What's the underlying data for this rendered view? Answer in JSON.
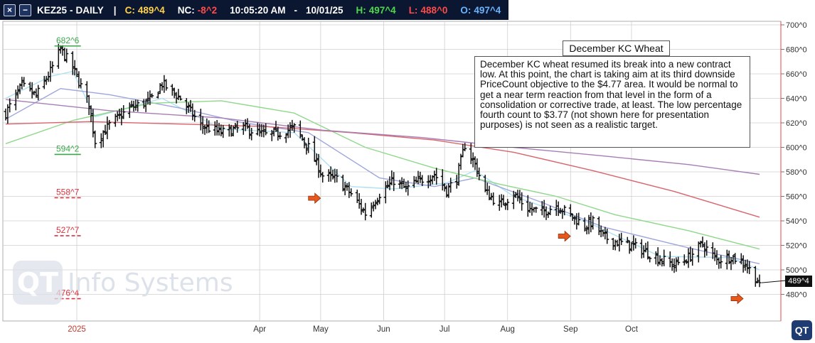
{
  "header": {
    "symbol": "KEZ25",
    "separator_dash": "-",
    "period": "DAILY",
    "separator_bar": "|",
    "close_label": "C:",
    "close_value": "489^4",
    "net_change_label": "NC:",
    "net_change_value": "-8^2",
    "time": "10:05:20 AM",
    "time_date_separator": "-",
    "date": "10/01/25",
    "high_label": "H:",
    "high_value": "497^4",
    "low_label": "L:",
    "low_value": "488^0",
    "open_label": "O:",
    "open_value": "497^4",
    "icons": [
      "close-window-icon",
      "minimize-window-icon"
    ]
  },
  "annotation": {
    "title": "December KC Wheat",
    "body": "December KC wheat resumed its break into a new contract low.  At this point, the chart is taking aim at its third downside PriceCount objective to the $4.77 area.  It would be normal to get a near term reaction from that level in the form of a consolidation or corrective trade, at least.  The low percentage fourth count to $3.77 (not shown here for presentation purposes) is not seen as a realistic target."
  },
  "watermark": {
    "logo_text": "QT",
    "text": "Info Systems"
  },
  "corner_logo": "QT",
  "last_price_tag": "489^4",
  "colors": {
    "header_bg": "#0b1730",
    "ma_fast": "#aee0f2",
    "ma_mid": "#9da6dd",
    "ma_green": "#8fd889",
    "ma_red": "#d9646c",
    "ma_purple": "#a77db4",
    "count_green": "#3aa84a",
    "count_red": "#d9333f",
    "arrow": "#e8581c"
  },
  "chart_data": {
    "type": "ohlc",
    "y_axis": {
      "min": 460,
      "max": 705,
      "position": "right",
      "ticks": [
        480,
        500,
        520,
        540,
        560,
        580,
        600,
        620,
        640,
        660,
        680,
        700
      ],
      "tick_labels": [
        "480^0",
        "500^0",
        "520^0",
        "540^0",
        "560^0",
        "580^0",
        "600^0",
        "620^0",
        "640^0",
        "660^0",
        "680^0",
        "700^0"
      ]
    },
    "x_axis": {
      "labels": [
        {
          "date": "2025-01-01",
          "label": "2025"
        },
        {
          "date": "2025-04-01",
          "label": "Apr"
        },
        {
          "date": "2025-05-01",
          "label": "May"
        },
        {
          "date": "2025-06-01",
          "label": "Jun"
        },
        {
          "date": "2025-07-01",
          "label": "Jul"
        },
        {
          "date": "2025-08-01",
          "label": "Aug"
        },
        {
          "date": "2025-09-01",
          "label": "Sep"
        },
        {
          "date": "2025-10-01",
          "label": "Oct"
        }
      ]
    },
    "grid": true,
    "last_price": 489.5,
    "keypoints": [
      {
        "date": "2024-11-27",
        "price": 628
      },
      {
        "date": "2024-12-05",
        "price": 650
      },
      {
        "date": "2024-12-12",
        "price": 642
      },
      {
        "date": "2024-12-19",
        "price": 662
      },
      {
        "date": "2024-12-24",
        "price": 680
      },
      {
        "date": "2024-12-30",
        "price": 665
      },
      {
        "date": "2025-01-07",
        "price": 635
      },
      {
        "date": "2025-01-10",
        "price": 605
      },
      {
        "date": "2025-01-17",
        "price": 618
      },
      {
        "date": "2025-01-27",
        "price": 632
      },
      {
        "date": "2025-02-06",
        "price": 638
      },
      {
        "date": "2025-02-12",
        "price": 652
      },
      {
        "date": "2025-02-21",
        "price": 640
      },
      {
        "date": "2025-03-03",
        "price": 618
      },
      {
        "date": "2025-03-13",
        "price": 612
      },
      {
        "date": "2025-03-24",
        "price": 616
      },
      {
        "date": "2025-04-04",
        "price": 610
      },
      {
        "date": "2025-04-11",
        "price": 612
      },
      {
        "date": "2025-04-18",
        "price": 616
      },
      {
        "date": "2025-04-25",
        "price": 600
      },
      {
        "date": "2025-05-02",
        "price": 577
      },
      {
        "date": "2025-05-09",
        "price": 574
      },
      {
        "date": "2025-05-16",
        "price": 562
      },
      {
        "date": "2025-05-23",
        "price": 546
      },
      {
        "date": "2025-05-30",
        "price": 562
      },
      {
        "date": "2025-06-06",
        "price": 573
      },
      {
        "date": "2025-06-12",
        "price": 566
      },
      {
        "date": "2025-06-20",
        "price": 574
      },
      {
        "date": "2025-06-26",
        "price": 578
      },
      {
        "date": "2025-07-02",
        "price": 565
      },
      {
        "date": "2025-07-07",
        "price": 575
      },
      {
        "date": "2025-07-11",
        "price": 602
      },
      {
        "date": "2025-07-16",
        "price": 586
      },
      {
        "date": "2025-07-21",
        "price": 564
      },
      {
        "date": "2025-07-28",
        "price": 553
      },
      {
        "date": "2025-08-04",
        "price": 562
      },
      {
        "date": "2025-08-11",
        "price": 550
      },
      {
        "date": "2025-08-18",
        "price": 547
      },
      {
        "date": "2025-08-25",
        "price": 553
      },
      {
        "date": "2025-09-02",
        "price": 543
      },
      {
        "date": "2025-09-08",
        "price": 536
      },
      {
        "date": "2025-09-12",
        "price": 539
      },
      {
        "date": "2025-09-17",
        "price": 527
      },
      {
        "date": "2025-09-23",
        "price": 523
      },
      {
        "date": "2025-10-01",
        "price": 520
      },
      {
        "date": "2025-10-08",
        "price": 515
      },
      {
        "date": "2025-10-15",
        "price": 509
      },
      {
        "date": "2025-10-22",
        "price": 504
      },
      {
        "date": "2025-10-29",
        "price": 510
      },
      {
        "date": "2025-11-05",
        "price": 521
      },
      {
        "date": "2025-11-12",
        "price": 508
      },
      {
        "date": "2025-11-19",
        "price": 511
      },
      {
        "date": "2025-11-26",
        "price": 505
      },
      {
        "date": "2025-12-03",
        "price": 489
      }
    ],
    "moving_averages": [
      {
        "color_key": "ma_fast",
        "points": [
          {
            "date": "2024-11-27",
            "price": 640
          },
          {
            "date": "2024-12-19",
            "price": 658
          },
          {
            "date": "2024-12-30",
            "price": 662
          },
          {
            "date": "2025-01-10",
            "price": 625
          },
          {
            "date": "2025-02-12",
            "price": 640
          },
          {
            "date": "2025-03-13",
            "price": 615
          },
          {
            "date": "2025-04-18",
            "price": 612
          },
          {
            "date": "2025-05-16",
            "price": 568
          },
          {
            "date": "2025-06-06",
            "price": 566
          },
          {
            "date": "2025-07-02",
            "price": 571
          },
          {
            "date": "2025-07-16",
            "price": 581
          },
          {
            "date": "2025-08-04",
            "price": 560
          },
          {
            "date": "2025-09-08",
            "price": 540
          },
          {
            "date": "2025-10-15",
            "price": 511
          },
          {
            "date": "2025-11-19",
            "price": 510
          },
          {
            "date": "2025-12-03",
            "price": 500
          }
        ]
      },
      {
        "color_key": "ma_mid",
        "points": [
          {
            "date": "2024-11-27",
            "price": 623
          },
          {
            "date": "2024-12-24",
            "price": 648
          },
          {
            "date": "2025-01-17",
            "price": 643
          },
          {
            "date": "2025-02-21",
            "price": 632
          },
          {
            "date": "2025-03-24",
            "price": 620
          },
          {
            "date": "2025-04-25",
            "price": 612
          },
          {
            "date": "2025-05-30",
            "price": 575
          },
          {
            "date": "2025-06-26",
            "price": 568
          },
          {
            "date": "2025-07-16",
            "price": 575
          },
          {
            "date": "2025-08-18",
            "price": 555
          },
          {
            "date": "2025-09-17",
            "price": 535
          },
          {
            "date": "2025-10-29",
            "price": 518
          },
          {
            "date": "2025-12-03",
            "price": 505
          }
        ]
      },
      {
        "color_key": "ma_green",
        "points": [
          {
            "date": "2024-11-27",
            "price": 603
          },
          {
            "date": "2024-12-30",
            "price": 622
          },
          {
            "date": "2025-02-06",
            "price": 636
          },
          {
            "date": "2025-03-13",
            "price": 638
          },
          {
            "date": "2025-04-18",
            "price": 628
          },
          {
            "date": "2025-05-23",
            "price": 600
          },
          {
            "date": "2025-06-26",
            "price": 583
          },
          {
            "date": "2025-07-28",
            "price": 570
          },
          {
            "date": "2025-08-25",
            "price": 560
          },
          {
            "date": "2025-09-23",
            "price": 545
          },
          {
            "date": "2025-10-29",
            "price": 532
          },
          {
            "date": "2025-12-03",
            "price": 517
          }
        ]
      },
      {
        "color_key": "ma_red",
        "points": [
          {
            "date": "2024-11-27",
            "price": 619
          },
          {
            "date": "2025-01-07",
            "price": 621
          },
          {
            "date": "2025-02-21",
            "price": 619
          },
          {
            "date": "2025-04-04",
            "price": 617
          },
          {
            "date": "2025-05-16",
            "price": 612
          },
          {
            "date": "2025-06-26",
            "price": 606
          },
          {
            "date": "2025-08-04",
            "price": 596
          },
          {
            "date": "2025-09-12",
            "price": 581
          },
          {
            "date": "2025-10-22",
            "price": 564
          },
          {
            "date": "2025-12-03",
            "price": 543
          }
        ]
      },
      {
        "color_key": "ma_purple",
        "points": [
          {
            "date": "2024-11-27",
            "price": 639
          },
          {
            "date": "2025-01-17",
            "price": 630
          },
          {
            "date": "2025-03-13",
            "price": 624
          },
          {
            "date": "2025-05-02",
            "price": 614
          },
          {
            "date": "2025-06-20",
            "price": 608
          },
          {
            "date": "2025-08-04",
            "price": 600
          },
          {
            "date": "2025-09-17",
            "price": 593
          },
          {
            "date": "2025-10-29",
            "price": 586
          },
          {
            "date": "2025-12-03",
            "price": 578
          }
        ]
      }
    ],
    "price_counts": [
      {
        "label": "682^6",
        "price": 682.75,
        "color_key": "count_green",
        "style": "solid",
        "date_from": "2024-12-21",
        "date_to": "2025-01-03"
      },
      {
        "label": "594^2",
        "price": 594.25,
        "color_key": "count_green",
        "style": "solid",
        "date_from": "2024-12-21",
        "date_to": "2025-01-03"
      },
      {
        "label": "558^7",
        "price": 558.875,
        "color_key": "count_red",
        "style": "dashed",
        "date_from": "2024-12-21",
        "date_to": "2025-01-03"
      },
      {
        "label": "527^7",
        "price": 527.875,
        "color_key": "count_red",
        "style": "dashed",
        "date_from": "2024-12-21",
        "date_to": "2025-01-03"
      },
      {
        "label": "476^4",
        "price": 476.5,
        "color_key": "count_red",
        "style": "dashed",
        "date_from": "2024-12-21",
        "date_to": "2025-01-03"
      }
    ],
    "arrows": [
      {
        "date": "2025-05-02",
        "price": 558.5
      },
      {
        "date": "2025-09-02",
        "price": 527.5
      },
      {
        "date": "2025-11-26",
        "price": 476.5
      }
    ]
  }
}
